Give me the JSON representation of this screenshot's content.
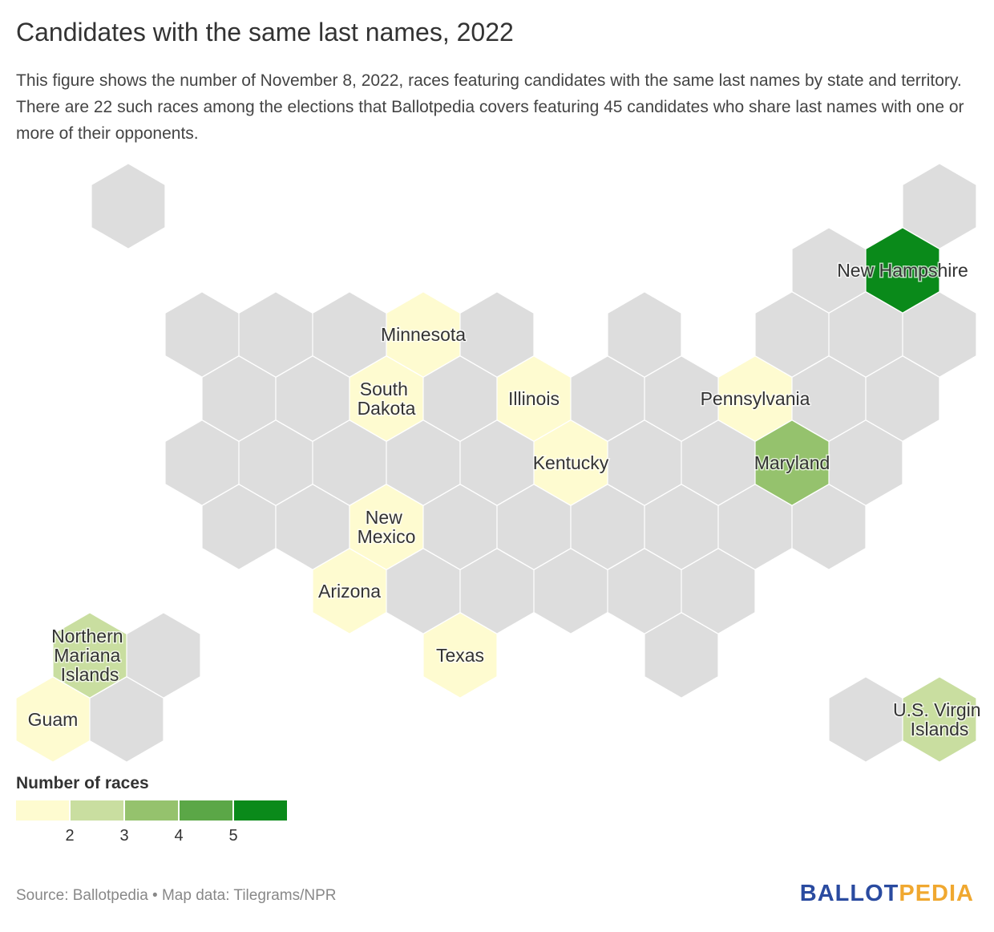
{
  "chart_data": {
    "type": "hexmap",
    "title": "Candidates with the same last names, 2022",
    "subtitle": "This figure shows the number of November 8, 2022, races featuring candidates with the same last names by state and territory. There are 22 such races among the elections that Ballotpedia covers featuring 45 candidates who share last names with one or more of their opponents.",
    "legend_title": "Number of races",
    "legend_ticks": [
      2,
      3,
      4,
      5
    ],
    "colors": [
      "#fefbd0",
      "#c9dea0",
      "#95c26d",
      "#5ba747",
      "#0a8a1a"
    ],
    "empty_color": "#dddddd",
    "regions": [
      {
        "name": "Minnesota",
        "value": 1
      },
      {
        "name": "South Dakota",
        "value": 1
      },
      {
        "name": "Illinois",
        "value": 1
      },
      {
        "name": "Kentucky",
        "value": 1
      },
      {
        "name": "Pennsylvania",
        "value": 1
      },
      {
        "name": "Maryland",
        "value": 3
      },
      {
        "name": "New Mexico",
        "value": 1
      },
      {
        "name": "Arizona",
        "value": 1
      },
      {
        "name": "Texas",
        "value": 1
      },
      {
        "name": "New Hampshire",
        "value": 6
      },
      {
        "name": "Northern Mariana Islands",
        "value": 2
      },
      {
        "name": "Guam",
        "value": 1
      },
      {
        "name": "U.S. Virgin Islands",
        "value": 2
      }
    ],
    "source": "Source: Ballotpedia • Map data: Tilegrams/NPR",
    "logo": [
      "BALLOT",
      "PEDIA"
    ]
  }
}
